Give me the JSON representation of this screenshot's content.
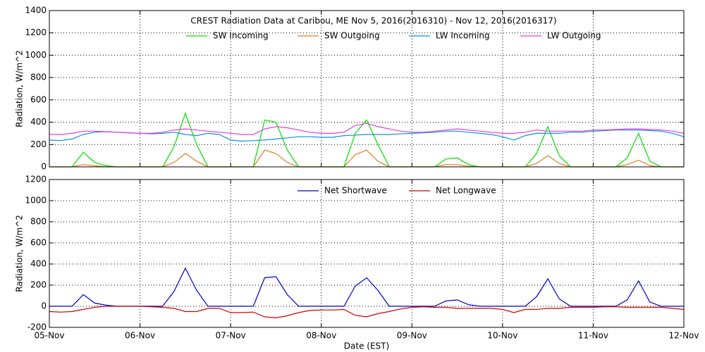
{
  "chart_data": [
    {
      "type": "line",
      "title": "CREST Radiation Data at Caribou, ME   Nov  5, 2016(2016310) - Nov 12, 2016(2016317)",
      "y_label": "Radiation, W/m^2",
      "show_xtick_labels": false,
      "grid": true,
      "xlim": [
        0,
        7
      ],
      "xticks": [
        0,
        1,
        2,
        3,
        4,
        5,
        6,
        7
      ],
      "ylim": [
        0,
        1400
      ],
      "yticks": [
        0,
        200,
        400,
        600,
        800,
        1000,
        1200,
        1400
      ],
      "x": [
        0,
        0.125,
        0.25,
        0.375,
        0.5,
        0.625,
        0.75,
        0.875,
        1,
        1.125,
        1.25,
        1.375,
        1.5,
        1.625,
        1.75,
        1.875,
        2,
        2.125,
        2.25,
        2.375,
        2.5,
        2.625,
        2.75,
        2.875,
        3,
        3.125,
        3.25,
        3.375,
        3.5,
        3.625,
        3.75,
        3.875,
        4,
        4.125,
        4.25,
        4.375,
        4.5,
        4.625,
        4.75,
        4.875,
        5,
        5.125,
        5.25,
        5.375,
        5.5,
        5.625,
        5.75,
        5.875,
        6,
        6.125,
        6.25,
        6.375,
        6.5,
        6.625,
        6.75,
        6.875,
        7
      ],
      "series": [
        {
          "name": "SW Incoming",
          "color": "#00dd00",
          "values": [
            0,
            0,
            0,
            130,
            40,
            10,
            0,
            0,
            0,
            0,
            0,
            180,
            480,
            200,
            0,
            0,
            0,
            0,
            0,
            420,
            400,
            150,
            0,
            0,
            0,
            0,
            0,
            300,
            420,
            200,
            0,
            0,
            0,
            0,
            0,
            70,
            80,
            20,
            0,
            0,
            0,
            0,
            0,
            120,
            360,
            100,
            0,
            0,
            0,
            0,
            0,
            80,
            300,
            50,
            0,
            0,
            0
          ]
        },
        {
          "name": "SW Outgoing",
          "color": "#e08020",
          "values": [
            0,
            0,
            0,
            20,
            10,
            0,
            0,
            0,
            0,
            0,
            0,
            40,
            120,
            50,
            0,
            0,
            0,
            0,
            0,
            150,
            120,
            40,
            0,
            0,
            0,
            0,
            0,
            110,
            150,
            50,
            0,
            0,
            0,
            0,
            0,
            20,
            20,
            5,
            0,
            0,
            0,
            0,
            0,
            30,
            100,
            30,
            0,
            0,
            0,
            0,
            0,
            20,
            60,
            10,
            0,
            0,
            0
          ]
        },
        {
          "name": "LW Incoming",
          "color": "#1090e0",
          "values": [
            240,
            235,
            250,
            290,
            310,
            315,
            310,
            305,
            300,
            295,
            300,
            310,
            290,
            280,
            300,
            290,
            240,
            230,
            235,
            240,
            250,
            260,
            270,
            270,
            265,
            265,
            280,
            285,
            290,
            290,
            290,
            295,
            300,
            305,
            310,
            320,
            320,
            310,
            300,
            290,
            270,
            240,
            280,
            300,
            300,
            300,
            310,
            310,
            320,
            325,
            330,
            330,
            330,
            325,
            320,
            300,
            270
          ]
        },
        {
          "name": "LW Outgoing",
          "color": "#e040e0",
          "values": [
            290,
            290,
            300,
            320,
            320,
            315,
            310,
            305,
            300,
            300,
            310,
            330,
            340,
            330,
            320,
            310,
            300,
            290,
            290,
            340,
            360,
            350,
            330,
            310,
            300,
            300,
            310,
            370,
            390,
            360,
            340,
            320,
            310,
            310,
            320,
            330,
            340,
            330,
            320,
            310,
            300,
            300,
            310,
            330,
            320,
            320,
            320,
            320,
            330,
            330,
            335,
            340,
            340,
            335,
            330,
            320,
            300
          ]
        }
      ]
    },
    {
      "type": "line",
      "y_label": "Radiation, W/m^2",
      "x_label": "Date (EST)",
      "show_xtick_labels": true,
      "grid": true,
      "xlim": [
        0,
        7
      ],
      "xticks": [
        {
          "value": 0,
          "label": "05-Nov"
        },
        {
          "value": 1,
          "label": "06-Nov"
        },
        {
          "value": 2,
          "label": "07-Nov"
        },
        {
          "value": 3,
          "label": "08-Nov"
        },
        {
          "value": 4,
          "label": "09-Nov"
        },
        {
          "value": 5,
          "label": "10-Nov"
        },
        {
          "value": 6,
          "label": "11-Nov"
        },
        {
          "value": 7,
          "label": "12-Nov"
        }
      ],
      "ylim": [
        -200,
        1200
      ],
      "yticks": [
        -200,
        0,
        200,
        400,
        600,
        800,
        1000,
        1200
      ],
      "x": [
        0,
        0.125,
        0.25,
        0.375,
        0.5,
        0.625,
        0.75,
        0.875,
        1,
        1.125,
        1.25,
        1.375,
        1.5,
        1.625,
        1.75,
        1.875,
        2,
        2.125,
        2.25,
        2.375,
        2.5,
        2.625,
        2.75,
        2.875,
        3,
        3.125,
        3.25,
        3.375,
        3.5,
        3.625,
        3.75,
        3.875,
        4,
        4.125,
        4.25,
        4.375,
        4.5,
        4.625,
        4.75,
        4.875,
        5,
        5.125,
        5.25,
        5.375,
        5.5,
        5.625,
        5.75,
        5.875,
        6,
        6.125,
        6.25,
        6.375,
        6.5,
        6.625,
        6.75,
        6.875,
        7
      ],
      "series": [
        {
          "name": "Net Shortwave",
          "color": "#0000c0",
          "values": [
            0,
            0,
            0,
            110,
            30,
            10,
            0,
            0,
            0,
            0,
            0,
            140,
            360,
            150,
            0,
            0,
            0,
            0,
            0,
            270,
            280,
            110,
            0,
            0,
            0,
            0,
            0,
            190,
            270,
            150,
            0,
            0,
            0,
            0,
            0,
            50,
            60,
            15,
            0,
            0,
            0,
            0,
            0,
            90,
            260,
            70,
            0,
            0,
            0,
            0,
            0,
            60,
            240,
            40,
            0,
            0,
            0
          ]
        },
        {
          "name": "Net Longwave",
          "color": "#d00000",
          "values": [
            -50,
            -55,
            -50,
            -30,
            -10,
            0,
            0,
            0,
            0,
            -5,
            -10,
            -20,
            -50,
            -50,
            -20,
            -20,
            -60,
            -60,
            -55,
            -100,
            -110,
            -90,
            -60,
            -40,
            -35,
            -35,
            -30,
            -85,
            -100,
            -70,
            -50,
            -25,
            -10,
            -5,
            -10,
            -10,
            -20,
            -20,
            -20,
            -20,
            -30,
            -60,
            -30,
            -30,
            -20,
            -20,
            -10,
            -10,
            -10,
            -5,
            -5,
            -10,
            -10,
            -10,
            -10,
            -20,
            -30
          ]
        }
      ]
    }
  ]
}
